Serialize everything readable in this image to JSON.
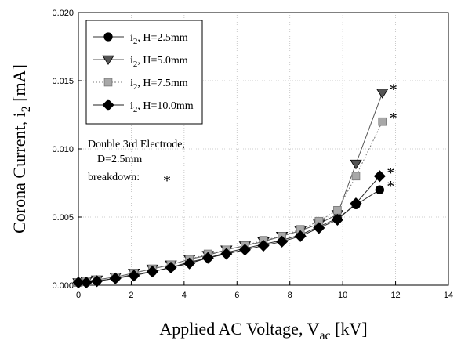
{
  "chart_data": {
    "type": "line",
    "xlabel": "Applied AC Voltage, V",
    "xlabel_sub": "ac",
    "xlabel_unit": " [kV]",
    "ylabel": "Corona Current, i",
    "ylabel_sub": "2",
    "ylabel_unit": " [mA]",
    "xlim": [
      0,
      14
    ],
    "ylim": [
      0,
      0.02
    ],
    "xticks": [
      "0",
      "2",
      "4",
      "6",
      "8",
      "10",
      "12",
      "14"
    ],
    "yticks": [
      "0.000",
      "0.005",
      "0.010",
      "0.015",
      "0.020"
    ],
    "grid": true,
    "legend_position": "top-left",
    "series": [
      {
        "label_main": "i",
        "label_sub": "2",
        "label_rest": ", H=2.5mm",
        "marker": "circle",
        "color": "#000000",
        "line_color": "#333333",
        "line_style": "solid",
        "x": [
          0,
          0.3,
          0.7,
          1.4,
          2.1,
          2.8,
          3.5,
          4.2,
          4.9,
          5.6,
          6.3,
          7.0,
          7.7,
          8.4,
          9.1,
          9.8,
          10.5,
          11.4
        ],
        "y": [
          0.0002,
          0.0002,
          0.0003,
          0.0005,
          0.0008,
          0.001,
          0.0013,
          0.0017,
          0.002,
          0.0024,
          0.0027,
          0.003,
          0.0033,
          0.0037,
          0.0043,
          0.0049,
          0.0059,
          0.007
        ]
      },
      {
        "label_main": "i",
        "label_sub": "2",
        "label_rest": ", H=5.0mm",
        "marker": "triangle-down",
        "color": "#555555",
        "line_color": "#555555",
        "line_style": "solid",
        "x": [
          0,
          0.3,
          0.7,
          1.4,
          2.1,
          2.8,
          3.5,
          4.2,
          4.9,
          5.6,
          6.3,
          7.0,
          7.7,
          8.4,
          9.1,
          9.8,
          10.5,
          11.5
        ],
        "y": [
          0.0002,
          0.0003,
          0.0004,
          0.0006,
          0.0009,
          0.0012,
          0.0015,
          0.0019,
          0.0022,
          0.0026,
          0.0029,
          0.0032,
          0.0036,
          0.004,
          0.0045,
          0.0052,
          0.0089,
          0.0141
        ]
      },
      {
        "label_main": "i",
        "label_sub": "2",
        "label_rest": ", H=7.5mm",
        "marker": "square",
        "color": "#a8a8a8",
        "line_color": "#777777",
        "line_style": "dotted",
        "x": [
          0,
          0.3,
          0.7,
          1.4,
          2.1,
          2.8,
          3.5,
          4.2,
          4.9,
          5.6,
          6.3,
          7.0,
          7.7,
          8.4,
          9.1,
          9.8,
          10.5,
          11.5
        ],
        "y": [
          0.0002,
          0.0003,
          0.0004,
          0.0006,
          0.0009,
          0.0012,
          0.0015,
          0.0019,
          0.0023,
          0.0026,
          0.0029,
          0.0033,
          0.0036,
          0.0041,
          0.0047,
          0.0055,
          0.008,
          0.012
        ]
      },
      {
        "label_main": "i",
        "label_sub": "2",
        "label_rest": ", H=10.0mm",
        "marker": "diamond",
        "color": "#000000",
        "line_color": "#222222",
        "line_style": "solid",
        "x": [
          0,
          0.3,
          0.7,
          1.4,
          2.1,
          2.8,
          3.5,
          4.2,
          4.9,
          5.6,
          6.3,
          7.0,
          7.7,
          8.4,
          9.1,
          9.8,
          10.5,
          11.4
        ],
        "y": [
          0.0002,
          0.0002,
          0.0003,
          0.0005,
          0.0007,
          0.001,
          0.0013,
          0.0016,
          0.002,
          0.0023,
          0.0026,
          0.0029,
          0.0032,
          0.0036,
          0.0042,
          0.0048,
          0.006,
          0.008
        ]
      }
    ],
    "annotations": {
      "line1": "Double 3rd Electrode,",
      "line2": "D=2.5mm",
      "line3": "breakdown:",
      "star": "*"
    },
    "breakdown_marks": [
      {
        "x": 11.5,
        "y": 0.0141
      },
      {
        "x": 11.5,
        "y": 0.012
      },
      {
        "x": 11.4,
        "y": 0.008
      },
      {
        "x": 11.4,
        "y": 0.007
      }
    ]
  }
}
